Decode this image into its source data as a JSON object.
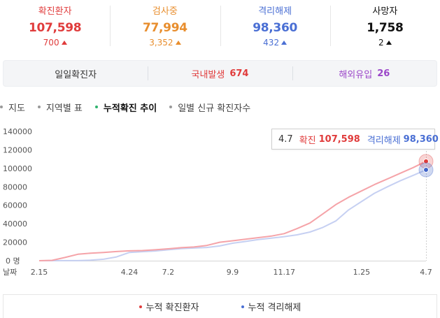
{
  "stats": [
    {
      "label": "확진환자",
      "value": "107,598",
      "delta": "700",
      "color": "#e03c3c"
    },
    {
      "label": "검사중",
      "value": "77,994",
      "delta": "3,352",
      "color": "#e88e2e"
    },
    {
      "label": "격리해제",
      "value": "98,360",
      "delta": "432",
      "color": "#4a6fd4"
    },
    {
      "label": "사망자",
      "value": "1,758",
      "delta": "2",
      "color": "#111111"
    }
  ],
  "daily": {
    "label": "일일확진자",
    "domestic_label": "국내발생",
    "domestic_value": "674",
    "overseas_label": "해외유입",
    "overseas_value": "26"
  },
  "tabs": [
    {
      "label": "지도",
      "active": false
    },
    {
      "label": "지역별 표",
      "active": false
    },
    {
      "label": "누적확진 추이",
      "active": true
    },
    {
      "label": "일별 신규 확진자수",
      "active": false
    }
  ],
  "tooltip": {
    "date": "4.7",
    "confirmed_label": "확진",
    "confirmed_value": "107,598",
    "released_label": "격리해제",
    "released_value": "98,360"
  },
  "legend": {
    "confirmed": "누적 확진환자",
    "released": "누적 격리해제"
  },
  "chart_data": {
    "type": "line",
    "x_axis_label": "날짜",
    "y_zero_label": "0 명",
    "y_ticks": [
      20000,
      40000,
      60000,
      80000,
      100000,
      120000,
      140000
    ],
    "ylim": [
      0,
      140000
    ],
    "x_tick_labels": [
      "2.15",
      "4.24",
      "7.2",
      "9.9",
      "11.17",
      "1.25",
      "4.7"
    ],
    "x": [
      "2.15",
      "2.22",
      "3.1",
      "3.8",
      "3.15",
      "3.22",
      "4.1",
      "4.24",
      "5.15",
      "6.5",
      "7.2",
      "7.25",
      "8.10",
      "8.20",
      "9.1",
      "9.9",
      "9.25",
      "10.15",
      "10.31",
      "11.17",
      "11.30",
      "12.10",
      "12.20",
      "12.31",
      "1.10",
      "1.25",
      "2.10",
      "2.25",
      "3.10",
      "3.25",
      "4.7"
    ],
    "series": [
      {
        "name": "누적 확진환자",
        "color": "#f5a3a8",
        "values": [
          28,
          400,
          3500,
          7000,
          8200,
          8900,
          9900,
          10700,
          11000,
          11800,
          12900,
          14100,
          14800,
          16500,
          20000,
          21600,
          23300,
          25000,
          26600,
          29300,
          34700,
          40800,
          50600,
          60700,
          68700,
          75500,
          82400,
          88500,
          94700,
          100800,
          107598
        ]
      },
      {
        "name": "누적 격리해제",
        "color": "#c6d0f2",
        "values": [
          10,
          30,
          40,
          100,
          500,
          1600,
          4100,
          8900,
          9800,
          10500,
          11800,
          13000,
          13700,
          14300,
          16000,
          18900,
          20800,
          22900,
          24400,
          26000,
          28000,
          31000,
          36000,
          43000,
          55000,
          64000,
          73000,
          80000,
          86500,
          92400,
          98360
        ]
      }
    ]
  }
}
